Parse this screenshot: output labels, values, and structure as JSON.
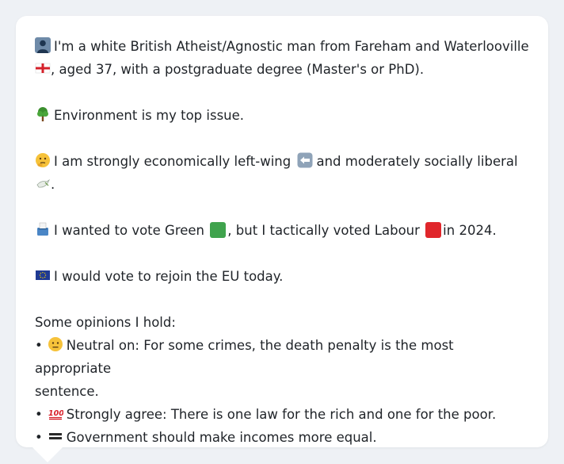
{
  "profile": {
    "intro_text": "I'm a white British Atheist/Agnostic man from Fareham and Waterlooville",
    "intro_text_2": ", aged 37, with a postgraduate degree (Master's or PhD).",
    "top_issue_text": "Environment is my top issue.",
    "economic_text": "I am strongly economically left-wing",
    "social_text": "and moderately socially liberal",
    "social_tail": ".",
    "vote_text_1": "I wanted to vote Green",
    "vote_text_2": ", but I tactically voted Labour",
    "vote_text_3": "in 2024.",
    "eu_text": "I would vote to rejoin the EU today.",
    "opinions_heading": "Some opinions I hold:",
    "opinions": [
      {
        "bullet": "•",
        "label": "Neutral on: For some crimes, the death penalty is the most appropriate",
        "label_cont": "sentence."
      },
      {
        "bullet": "•",
        "label": "Strongly agree: There is one law for the rich and one for the poor."
      },
      {
        "bullet": "•",
        "label": "Government should make incomes more equal."
      }
    ]
  },
  "icons": {
    "person": "person-silhouette-icon",
    "england_flag": "england-flag-icon",
    "tree": "tree-icon",
    "thinking": "thinking-face-icon",
    "left_arrow": "left-arrow-icon",
    "dove": "dove-icon",
    "ballot": "ballot-box-icon",
    "eu_flag": "eu-flag-icon",
    "neutral": "neutral-face-icon",
    "hundred": "hundred-points-icon",
    "equals": "heavy-equals-icon"
  },
  "colors": {
    "green_party": "#3fa34d",
    "labour_party": "#e0262b",
    "card_bg": "#ffffff",
    "page_bg": "#eef1f5"
  }
}
